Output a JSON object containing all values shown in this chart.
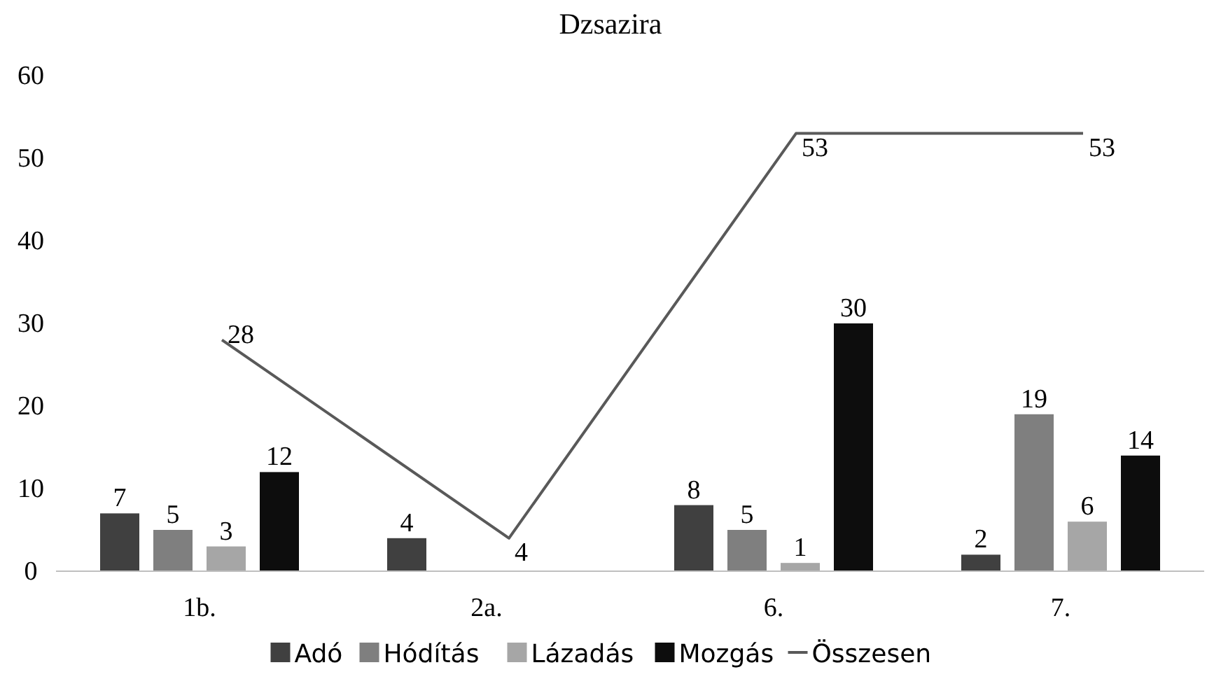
{
  "chart_data": {
    "type": "bar",
    "title": "Dzsazira",
    "categories": [
      "1b.",
      "2a.",
      "6.",
      "7."
    ],
    "series": [
      {
        "name": "Adó",
        "color": "#404040",
        "values": [
          7,
          4,
          8,
          2
        ]
      },
      {
        "name": "Hódítás",
        "color": "#7f7f7f",
        "values": [
          5,
          null,
          5,
          19
        ]
      },
      {
        "name": "Lázadás",
        "color": "#a6a6a6",
        "values": [
          3,
          null,
          1,
          6
        ]
      },
      {
        "name": "Mozgás",
        "color": "#0d0d0d",
        "values": [
          12,
          null,
          30,
          14
        ]
      },
      {
        "name": "Összesen",
        "type": "line",
        "color": "#595959",
        "values": [
          28,
          4,
          53,
          53
        ]
      }
    ],
    "ylim": [
      0,
      60
    ],
    "yticks": [
      0,
      10,
      20,
      30,
      40,
      50,
      60
    ],
    "data_labels": true,
    "legend": "bottom"
  }
}
